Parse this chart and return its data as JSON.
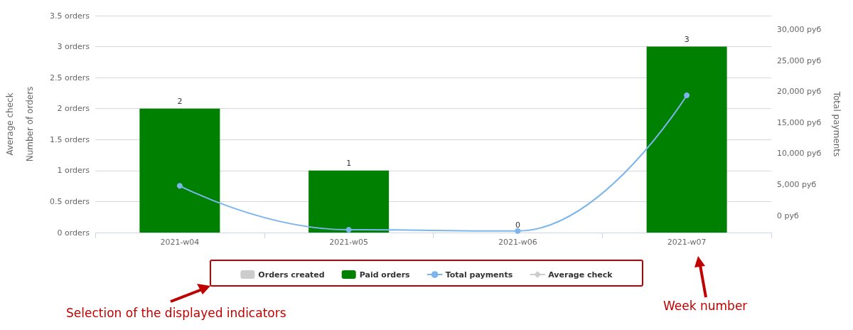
{
  "chart_data": {
    "type": "bar",
    "categories": [
      "2021-w04",
      "2021-w05",
      "2021-w06",
      "2021-w07"
    ],
    "ylabel": "Number of orders",
    "y2label": "Total payments",
    "y3label": "Average check",
    "ylim": [
      0,
      3.5
    ],
    "yticks": [
      {
        "value": 0,
        "label": "0 orders"
      },
      {
        "value": 0.5,
        "label": "0.5 orders"
      },
      {
        "value": 1,
        "label": "1 orders"
      },
      {
        "value": 1.5,
        "label": "1.5 orders"
      },
      {
        "value": 2,
        "label": "2 orders"
      },
      {
        "value": 2.5,
        "label": "2.5 orders"
      },
      {
        "value": 3,
        "label": "3 orders"
      },
      {
        "value": 3.5,
        "label": "3.5 orders"
      }
    ],
    "y2lim": [
      -2750,
      32250
    ],
    "y2ticks": [
      {
        "value": 0,
        "label": "0 руб"
      },
      {
        "value": 5000,
        "label": "5,000 руб"
      },
      {
        "value": 10000,
        "label": "10,000 руб"
      },
      {
        "value": 15000,
        "label": "15,000 руб"
      },
      {
        "value": 20000,
        "label": "20,000 руб"
      },
      {
        "value": 25000,
        "label": "25,000 руб"
      },
      {
        "value": 30000,
        "label": "30,000 руб"
      }
    ],
    "series": [
      {
        "name": "Orders created",
        "color": "#cccccc",
        "values": [
          null,
          null,
          null,
          null
        ]
      },
      {
        "name": "Paid orders",
        "color": "#008000",
        "values": [
          2,
          1,
          0,
          3
        ],
        "data_labels": true
      },
      {
        "name": "Total payments",
        "type": "line",
        "axis": "y2",
        "color": "#7cb5ec",
        "marker": "circle",
        "values": [
          4800,
          -2300,
          -2500,
          19400
        ]
      },
      {
        "name": "Average check",
        "type": "line",
        "color": "#cccccc",
        "marker": "diamond",
        "values": [
          null,
          null,
          null,
          null
        ]
      }
    ],
    "grid": "y",
    "legend": "bottom",
    "annotations": [
      "Selection of the displayed indicators",
      "Week number"
    ]
  }
}
